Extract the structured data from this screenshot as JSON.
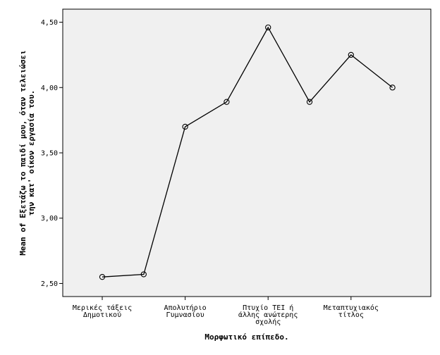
{
  "chart_data": {
    "type": "line",
    "categories": [
      "Μερικές τάξεις Δημοτικού",
      "",
      "Απολυτήριο Γυμνασίου",
      "",
      "Πτυχίο ΤΕΙ ή άλλης ανώτερης σχολής",
      "",
      "Μεταπτυχιακός τίτλος",
      ""
    ],
    "category_tick_labels": [
      [
        "Μερικές τάξεις",
        "Δημοτικού"
      ],
      [
        "Απολυτήριο",
        "Γυμνασίου"
      ],
      [
        "Πτυχίο ΤΕΙ ή",
        "άλλης ανώτερης",
        "σχολής"
      ],
      [
        "Μεταπτυχιακός",
        "τίτλος"
      ]
    ],
    "labeled_category_indices": [
      0,
      2,
      4,
      6
    ],
    "values": [
      2.55,
      2.57,
      3.7,
      3.89,
      4.46,
      3.89,
      4.25,
      4.0
    ],
    "xlabel": "Μορφωτικό επίπεδο.",
    "ylabel_lines": [
      "Mean of Εξετάζω το παιδί μου, όταν τελειώσει",
      "την κατ' οίκον εργασία του."
    ],
    "ylim": [
      2.4,
      4.6
    ],
    "yticks": [
      2.5,
      3.0,
      3.5,
      4.0,
      4.5
    ],
    "ytick_labels": [
      "2,50",
      "3,00",
      "3,50",
      "4,00",
      "4,50"
    ],
    "grid": false,
    "colors": {
      "plot_background": "#f0f0f0",
      "line": "#000000",
      "frame": "#000000"
    }
  }
}
